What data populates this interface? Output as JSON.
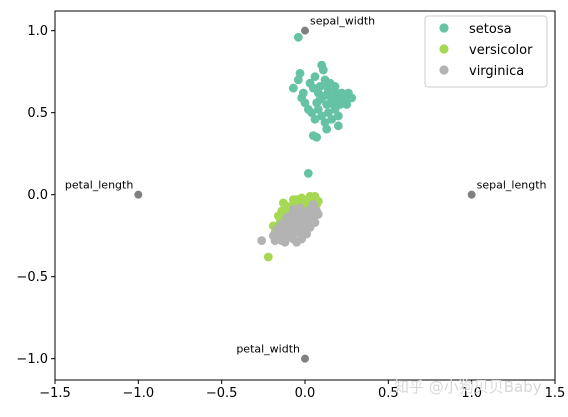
{
  "chart_data": {
    "type": "scatter",
    "xlim": [
      -1.5,
      1.5
    ],
    "ylim": [
      -1.13,
      1.12
    ],
    "x_ticks": [
      -1.5,
      -1.0,
      -0.5,
      0.0,
      0.5,
      1.0,
      1.5
    ],
    "y_ticks": [
      -1.0,
      -0.5,
      0.0,
      0.5,
      1.0
    ],
    "x_tick_labels": [
      "−1.5",
      "−1.0",
      "−0.5",
      "0.0",
      "0.5",
      "1.0",
      "1.5"
    ],
    "y_tick_labels": [
      "−1.0",
      "−0.5",
      "0.0",
      "0.5",
      "1.0"
    ],
    "grid": false,
    "legend_position": "top-right",
    "series": [
      {
        "name": "setosa",
        "color": "#66c2a5",
        "points": [
          [
            -0.04,
            0.96
          ],
          [
            -0.03,
            0.74
          ],
          [
            -0.04,
            0.7
          ],
          [
            -0.07,
            0.65
          ],
          [
            -0.01,
            0.62
          ],
          [
            0.03,
            0.68
          ],
          [
            0.05,
            0.65
          ],
          [
            0.06,
            0.72
          ],
          [
            0.08,
            0.62
          ],
          [
            0.09,
            0.58
          ],
          [
            0.1,
            0.79
          ],
          [
            0.11,
            0.76
          ],
          [
            0.12,
            0.7
          ],
          [
            0.13,
            0.66
          ],
          [
            0.14,
            0.63
          ],
          [
            0.15,
            0.6
          ],
          [
            0.16,
            0.57
          ],
          [
            0.17,
            0.55
          ],
          [
            0.18,
            0.66
          ],
          [
            0.19,
            0.62
          ],
          [
            0.2,
            0.58
          ],
          [
            0.21,
            0.55
          ],
          [
            0.22,
            0.62
          ],
          [
            0.24,
            0.58
          ],
          [
            0.25,
            0.55
          ],
          [
            0.26,
            0.62
          ],
          [
            0.28,
            0.59
          ],
          [
            0.0,
            0.56
          ],
          [
            0.02,
            0.52
          ],
          [
            0.04,
            0.5
          ],
          [
            0.06,
            0.46
          ],
          [
            0.08,
            0.52
          ],
          [
            0.1,
            0.48
          ],
          [
            0.12,
            0.44
          ],
          [
            0.14,
            0.5
          ],
          [
            0.16,
            0.46
          ],
          [
            0.18,
            0.52
          ],
          [
            0.2,
            0.48
          ],
          [
            0.13,
            0.55
          ],
          [
            0.11,
            0.6
          ],
          [
            0.07,
            0.56
          ],
          [
            0.09,
            0.66
          ],
          [
            0.05,
            0.36
          ],
          [
            0.07,
            0.35
          ],
          [
            0.13,
            0.4
          ],
          [
            0.2,
            0.42
          ],
          [
            0.02,
            0.13
          ],
          [
            -0.02,
            0.59
          ],
          [
            0.15,
            0.68
          ],
          [
            0.17,
            0.61
          ]
        ]
      },
      {
        "name": "versicolor",
        "color": "#a6d854",
        "points": [
          [
            -0.22,
            -0.38
          ],
          [
            -0.18,
            -0.23
          ],
          [
            -0.19,
            -0.19
          ],
          [
            -0.14,
            -0.1
          ],
          [
            -0.13,
            -0.15
          ],
          [
            -0.11,
            -0.2
          ],
          [
            -0.1,
            -0.08
          ],
          [
            -0.09,
            -0.14
          ],
          [
            -0.08,
            -0.18
          ],
          [
            -0.07,
            -0.06
          ],
          [
            -0.06,
            -0.1
          ],
          [
            -0.05,
            -0.03
          ],
          [
            -0.04,
            -0.09
          ],
          [
            -0.03,
            -0.14
          ],
          [
            -0.02,
            -0.02
          ],
          [
            -0.01,
            -0.07
          ],
          [
            0.0,
            -0.12
          ],
          [
            0.01,
            -0.04
          ],
          [
            0.02,
            -0.09
          ],
          [
            0.03,
            -0.06
          ],
          [
            0.04,
            -0.11
          ],
          [
            0.05,
            -0.08
          ],
          [
            0.06,
            -0.03
          ],
          [
            0.07,
            -0.06
          ],
          [
            0.05,
            -0.13
          ],
          [
            0.03,
            -0.02
          ],
          [
            0.0,
            -0.05
          ],
          [
            -0.02,
            -0.09
          ],
          [
            -0.05,
            -0.06
          ],
          [
            -0.08,
            -0.12
          ],
          [
            -0.1,
            -0.16
          ],
          [
            -0.12,
            -0.12
          ],
          [
            -0.15,
            -0.17
          ],
          [
            -0.06,
            -0.16
          ],
          [
            -0.04,
            -0.21
          ],
          [
            0.02,
            -0.16
          ],
          [
            -0.01,
            -0.19
          ],
          [
            -0.11,
            -0.07
          ],
          [
            0.06,
            -0.01
          ],
          [
            0.04,
            -0.05
          ],
          [
            -0.07,
            -0.03
          ],
          [
            -0.03,
            -0.05
          ],
          [
            0.01,
            -0.1
          ],
          [
            -0.09,
            -0.09
          ],
          [
            -0.13,
            -0.05
          ],
          [
            -0.16,
            -0.13
          ],
          [
            0.08,
            -0.04
          ],
          [
            -0.02,
            -0.12
          ],
          [
            0.03,
            -0.01
          ],
          [
            -0.04,
            -0.13
          ]
        ]
      },
      {
        "name": "virginica",
        "color": "#b3b3b3",
        "points": [
          [
            -0.26,
            -0.28
          ],
          [
            -0.14,
            -0.28
          ],
          [
            -0.12,
            -0.25
          ],
          [
            -0.1,
            -0.22
          ],
          [
            -0.07,
            -0.27
          ],
          [
            -0.05,
            -0.2
          ],
          [
            -0.03,
            -0.17
          ],
          [
            -0.01,
            -0.22
          ],
          [
            0.01,
            -0.15
          ],
          [
            0.03,
            -0.12
          ],
          [
            0.05,
            -0.14
          ],
          [
            0.07,
            -0.1
          ],
          [
            0.04,
            -0.08
          ],
          [
            0.02,
            -0.19
          ],
          [
            0.0,
            -0.16
          ],
          [
            -0.02,
            -0.13
          ],
          [
            -0.04,
            -0.15
          ],
          [
            -0.06,
            -0.19
          ],
          [
            -0.08,
            -0.23
          ],
          [
            -0.09,
            -0.13
          ],
          [
            -0.11,
            -0.18
          ],
          [
            -0.13,
            -0.22
          ],
          [
            -0.15,
            -0.24
          ],
          [
            -0.17,
            -0.21
          ],
          [
            -0.04,
            -0.23
          ],
          [
            -0.02,
            -0.27
          ],
          [
            0.01,
            -0.24
          ],
          [
            0.03,
            -0.2
          ],
          [
            0.06,
            -0.17
          ],
          [
            0.08,
            -0.12
          ],
          [
            0.05,
            -0.06
          ],
          [
            0.02,
            -0.1
          ],
          [
            -0.01,
            -0.11
          ],
          [
            -0.03,
            -0.08
          ],
          [
            -0.06,
            -0.12
          ],
          [
            -0.08,
            -0.16
          ],
          [
            -0.1,
            -0.26
          ],
          [
            -0.12,
            -0.29
          ],
          [
            -0.16,
            -0.27
          ],
          [
            -0.19,
            -0.25
          ],
          [
            -0.05,
            -0.29
          ],
          [
            0.0,
            -0.2
          ],
          [
            -0.07,
            -0.09
          ],
          [
            -0.11,
            -0.14
          ],
          [
            0.04,
            -0.16
          ],
          [
            -0.14,
            -0.18
          ],
          [
            -0.18,
            -0.28
          ],
          [
            -0.09,
            -0.2
          ],
          [
            0.06,
            -0.13
          ],
          [
            -0.03,
            -0.1
          ]
        ]
      }
    ],
    "feature_points": [
      {
        "label": "sepal_length",
        "x": 1.0,
        "y": 0.0,
        "anchor": "right"
      },
      {
        "label": "sepal_width",
        "x": 0.0,
        "y": 1.0,
        "anchor": "right"
      },
      {
        "label": "petal_length",
        "x": -1.0,
        "y": 0.0,
        "anchor": "left"
      },
      {
        "label": "petal_width",
        "x": 0.0,
        "y": -1.0,
        "anchor": "left"
      }
    ],
    "feature_point_color": "#808080"
  },
  "watermark": "知乎 @小狗贝贝Baby"
}
